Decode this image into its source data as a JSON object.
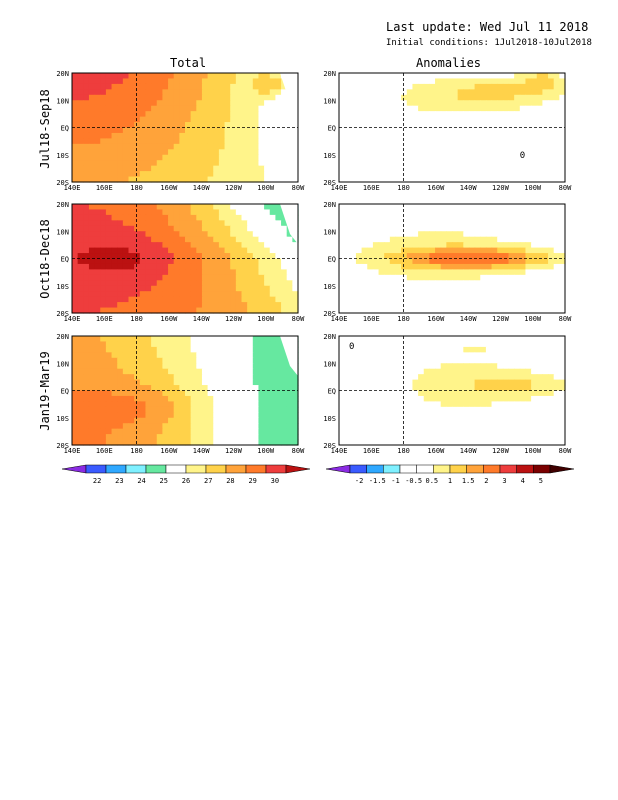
{
  "header": {
    "last_update": "Last update: Wed Jul 11 2018",
    "initial_conditions": "Initial conditions: 1Jul2018-10Jul2018"
  },
  "columns": {
    "total": "Total",
    "anomalies": "Anomalies"
  },
  "rows": [
    "Jul18-Sep18",
    "Oct18-Dec18",
    "Jan19-Mar19"
  ],
  "map_axes": {
    "lon_ticks": [
      "140E",
      "160E",
      "180",
      "160W",
      "140W",
      "120W",
      "100W",
      "80W"
    ],
    "lat_ticks": [
      "20N",
      "10N",
      "EQ",
      "10S",
      "20S"
    ],
    "lon_range": [
      140,
      280
    ],
    "lat_range": [
      -20,
      20
    ]
  },
  "total_colorbar": {
    "labels": [
      "22",
      "23",
      "24",
      "25",
      "26",
      "27",
      "28",
      "29",
      "30"
    ],
    "colors": [
      "#8a2be2",
      "#3a5bff",
      "#2fa8ff",
      "#7ff0ff",
      "#66e8a0",
      "#ffffff",
      "#fff48a",
      "#ffd24a",
      "#ffa33a",
      "#ff7a2a",
      "#ee3d3d",
      "#bb1111"
    ]
  },
  "anom_colorbar": {
    "labels": [
      "-2",
      "-1.5",
      "-1",
      "-0.5",
      "0.5",
      "1",
      "1.5",
      "2",
      "3",
      "4",
      "5"
    ],
    "colors": [
      "#8a2be2",
      "#3a5bff",
      "#2fa8ff",
      "#7ff0ff",
      "#ffffff",
      "#ffffff",
      "#fff48a",
      "#ffd24a",
      "#ffa33a",
      "#ff7a2a",
      "#ee3d3d",
      "#bb1111",
      "#7a0000",
      "#400000"
    ]
  },
  "chart_data": [
    {
      "type": "heatmap",
      "title": "Total",
      "row": "Jul18-Sep18",
      "colorbar": "total_colorbar"
    },
    {
      "type": "heatmap",
      "title": "Anomalies",
      "row": "Jul18-Sep18",
      "colorbar": "anom_colorbar",
      "contour_labels": [
        "0"
      ]
    },
    {
      "type": "heatmap",
      "title": "Total",
      "row": "Oct18-Dec18",
      "colorbar": "total_colorbar"
    },
    {
      "type": "heatmap",
      "title": "Anomalies",
      "row": "Oct18-Dec18",
      "colorbar": "anom_colorbar"
    },
    {
      "type": "heatmap",
      "title": "Total",
      "row": "Jan19-Mar19",
      "colorbar": "total_colorbar"
    },
    {
      "type": "heatmap",
      "title": "Anomalies",
      "row": "Jan19-Mar19",
      "colorbar": "anom_colorbar",
      "contour_labels": [
        "0"
      ]
    }
  ]
}
